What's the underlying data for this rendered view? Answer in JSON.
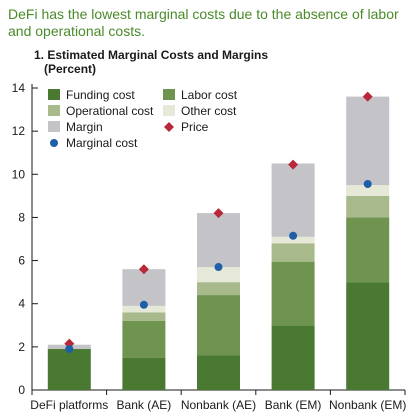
{
  "headline": "DeFi has the lowest marginal costs due to the absence of labor and operational costs.",
  "chart_data": {
    "type": "bar",
    "stacked": true,
    "title_line1": "1. Estimated Marginal Costs and Margins",
    "title_line2": "(Percent)",
    "categories": [
      "DeFi platforms",
      "Bank (AE)",
      "Nonbank (AE)",
      "Bank (EM)",
      "Nonbank (EM)"
    ],
    "ylim": [
      0,
      14
    ],
    "yticks": [
      0,
      2,
      4,
      6,
      8,
      10,
      12,
      14
    ],
    "series": [
      {
        "name": "Funding cost",
        "color": "#4a7a32",
        "values": [
          1.9,
          1.5,
          1.6,
          3.0,
          5.0
        ]
      },
      {
        "name": "Labor cost",
        "color": "#6e9450",
        "values": [
          0.0,
          1.7,
          2.8,
          2.95,
          3.0
        ]
      },
      {
        "name": "Operational cost",
        "color": "#a8ba8c",
        "values": [
          0.0,
          0.4,
          0.6,
          0.85,
          1.0
        ]
      },
      {
        "name": "Other cost",
        "color": "#e6e8d8",
        "values": [
          0.0,
          0.3,
          0.7,
          0.3,
          0.5
        ]
      },
      {
        "name": "Margin",
        "color": "#c3c3c8",
        "values": [
          0.2,
          1.7,
          2.5,
          3.4,
          4.1
        ]
      }
    ],
    "markers": [
      {
        "name": "Price",
        "color": "#b8283a",
        "shape": "diamond",
        "values": [
          2.15,
          5.6,
          8.2,
          10.45,
          13.6
        ]
      },
      {
        "name": "Marginal cost",
        "color": "#1f5fa8",
        "shape": "circle",
        "values": [
          1.9,
          3.95,
          5.7,
          7.15,
          9.55
        ]
      }
    ],
    "legend": [
      {
        "label": "Funding cost",
        "kind": "rect",
        "color": "#4a7a32"
      },
      {
        "label": "Labor cost",
        "kind": "rect",
        "color": "#6e9450"
      },
      {
        "label": "Operational cost",
        "kind": "rect",
        "color": "#a8ba8c"
      },
      {
        "label": "Other cost",
        "kind": "rect",
        "color": "#e6e8d8"
      },
      {
        "label": "Margin",
        "kind": "rect",
        "color": "#c3c3c8"
      },
      {
        "label": "Price",
        "kind": "diamond",
        "color": "#b8283a"
      },
      {
        "label": "Marginal cost",
        "kind": "circle",
        "color": "#1f5fa8"
      }
    ]
  }
}
